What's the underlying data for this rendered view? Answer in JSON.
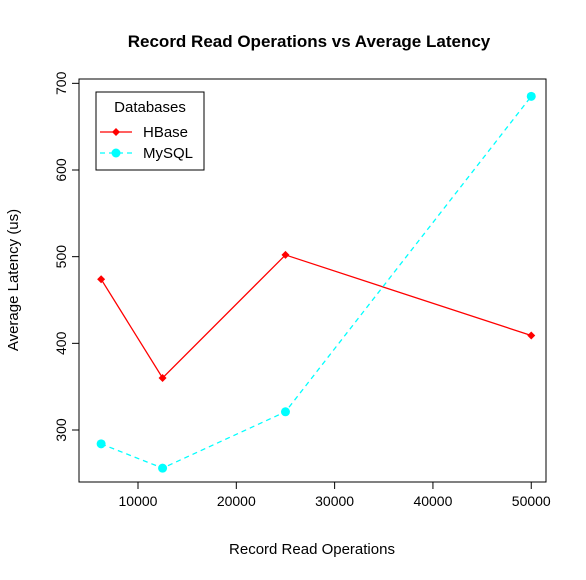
{
  "chart_data": {
    "type": "line",
    "title": "Record Read Operations vs Average Latency",
    "xlabel": "Record Read Operations",
    "ylabel": "Average Latency (us)",
    "xlim": [
      4000,
      51500
    ],
    "ylim": [
      240,
      705
    ],
    "x_ticks": [
      10000,
      20000,
      30000,
      40000,
      50000
    ],
    "y_ticks": [
      300,
      400,
      500,
      600,
      700
    ],
    "legend": {
      "title": "Databases",
      "position": "top-left"
    },
    "series": [
      {
        "name": "HBase",
        "color": "#ff0000",
        "line_style": "solid",
        "marker": "diamond",
        "x": [
          6250,
          12500,
          25000,
          50000
        ],
        "y": [
          474,
          360,
          502,
          409
        ]
      },
      {
        "name": "MySQL",
        "color": "#00ffff",
        "line_style": "dashed",
        "marker": "circle",
        "x": [
          6250,
          12500,
          25000,
          50000
        ],
        "y": [
          284,
          256,
          321,
          685
        ]
      }
    ],
    "grid": false
  }
}
